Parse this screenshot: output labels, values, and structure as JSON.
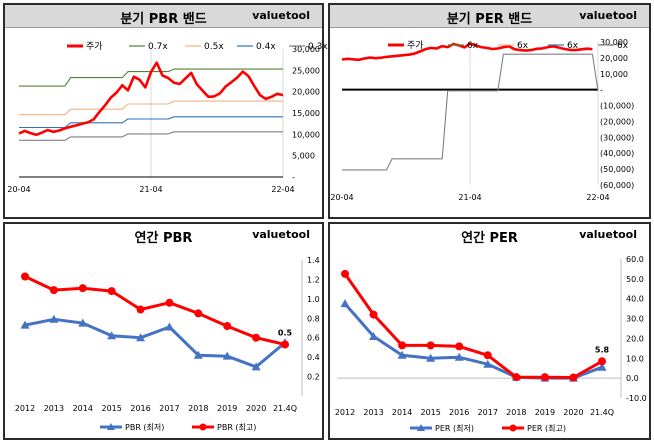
{
  "panels": {
    "qpbr": {
      "title": "분기 PBR 밴드",
      "brand": "valuetool"
    },
    "qper": {
      "title": "분기 PER 밴드",
      "brand": "valuetool"
    },
    "apbr": {
      "title": "연간 PBR",
      "brand": "valuetool"
    },
    "aper": {
      "title": "연간 PER",
      "brand": "valuetool"
    }
  },
  "chart_data": [
    {
      "id": "quarter-pbr-band",
      "type": "line",
      "title": "분기 PBR 밴드",
      "x_tick_labels": [
        "20-04",
        "21-04",
        "22-04"
      ],
      "y_tick_labels": [
        "-",
        "5,000",
        "10,000",
        "15,000",
        "20,000",
        "25,000",
        "30,000"
      ],
      "ylim": [
        0,
        30000
      ],
      "grid": "vertical",
      "legend": "top",
      "series": [
        {
          "name": "주가",
          "color": "#ff0000",
          "values": [
            10200,
            10800,
            10300,
            9900,
            10400,
            11000,
            10600,
            10900,
            11400,
            11800,
            12100,
            12500,
            12800,
            13500,
            15200,
            16800,
            18600,
            19800,
            21500,
            20300,
            23500,
            22800,
            21000,
            24600,
            26800,
            23800,
            23200,
            22100,
            21800,
            23100,
            24400,
            21700,
            20200,
            18800,
            18900,
            19600,
            21200,
            22200,
            23300,
            24700,
            23600,
            21300,
            19200,
            18300,
            18800,
            19500,
            19200
          ]
        },
        {
          "name": "0.7x",
          "color": "#548235",
          "values": [
            21300,
            21300,
            21300,
            21300,
            21300,
            21300,
            21300,
            21300,
            21300,
            23300,
            23300,
            23300,
            23300,
            23300,
            23300,
            23300,
            23300,
            23300,
            23300,
            24700,
            24700,
            24700,
            24700,
            24700,
            24700,
            24700,
            24700,
            25300,
            25300,
            25300,
            25300,
            25300,
            25300,
            25300,
            25300,
            25300,
            25300,
            25300,
            25300,
            25300,
            25300,
            25300,
            25300,
            25300,
            25300,
            25300,
            25300
          ]
        },
        {
          "name": "0.5x",
          "color": "#f4b183",
          "values": [
            14600,
            14600,
            14600,
            14600,
            14600,
            14600,
            14600,
            14600,
            14600,
            15900,
            15900,
            15900,
            15900,
            15900,
            15900,
            15900,
            15900,
            15900,
            15900,
            17100,
            17100,
            17100,
            17100,
            17100,
            17100,
            17100,
            17100,
            17800,
            17800,
            17800,
            17800,
            17800,
            17800,
            17800,
            17800,
            17800,
            17800,
            17800,
            17800,
            17800,
            17800,
            17800,
            17800,
            17800,
            17800,
            17800,
            17800
          ]
        },
        {
          "name": "0.4x",
          "color": "#2e75b6",
          "values": [
            11600,
            11600,
            11600,
            11600,
            11600,
            11600,
            11600,
            11600,
            11600,
            12700,
            12700,
            12700,
            12700,
            12700,
            12700,
            12700,
            12700,
            12700,
            12700,
            13600,
            13600,
            13600,
            13600,
            13600,
            13600,
            13600,
            13600,
            14100,
            14100,
            14100,
            14100,
            14100,
            14100,
            14100,
            14100,
            14100,
            14100,
            14100,
            14100,
            14100,
            14100,
            14100,
            14100,
            14100,
            14100,
            14100,
            14100
          ]
        },
        {
          "name": "0.3x",
          "color": "#808080",
          "values": [
            8600,
            8600,
            8600,
            8600,
            8600,
            8600,
            8600,
            8600,
            8600,
            9400,
            9400,
            9400,
            9400,
            9400,
            9400,
            9400,
            9400,
            9400,
            9400,
            10100,
            10100,
            10100,
            10100,
            10100,
            10100,
            10100,
            10100,
            10600,
            10600,
            10600,
            10600,
            10600,
            10600,
            10600,
            10600,
            10600,
            10600,
            10600,
            10600,
            10600,
            10600,
            10600,
            10600,
            10600,
            10600,
            10600,
            10600
          ]
        }
      ]
    },
    {
      "id": "quarter-per-band",
      "type": "line",
      "title": "분기 PER 밴드",
      "x_tick_labels": [
        "20-04",
        "21-04",
        "22-04"
      ],
      "y_tick_labels": [
        "30,000",
        "20,000",
        "10,000",
        "-",
        "(10,000)",
        "(20,000)",
        "(30,000)",
        "(40,000)",
        "(50,000)",
        "(60,000)"
      ],
      "ylim": [
        -60000,
        30000
      ],
      "grid": "vertical",
      "legend": "top",
      "series": [
        {
          "name": "주가",
          "color": "#ff0000",
          "values": [
            19000,
            19400,
            19100,
            18800,
            19600,
            20200,
            19800,
            20100,
            20600,
            21000,
            21300,
            21700,
            22000,
            22700,
            24000,
            25500,
            26300,
            25900,
            27400,
            26800,
            28700,
            27900,
            26600,
            28900,
            27900,
            26800,
            26300,
            25600,
            25900,
            26700,
            27300,
            25500,
            24900,
            24600,
            24900,
            25700,
            26000,
            26800,
            27300,
            26500,
            25600,
            25000,
            24900,
            25400,
            25800,
            25500
          ]
        },
        {
          "name": "6x",
          "color": "#548235",
          "values": []
        },
        {
          "name": "6x",
          "color": "#f4b183",
          "values": []
        },
        {
          "name": "6x",
          "color": "#2e75b6",
          "values": []
        },
        {
          "name": "6x",
          "color": "#808080",
          "values": [
            -50500,
            -50500,
            -50500,
            -50500,
            -50500,
            -50500,
            -50500,
            -50500,
            -50500,
            -43500,
            -43500,
            -43500,
            -43500,
            -43500,
            -43500,
            -43500,
            -43500,
            -43500,
            -43500,
            -700,
            -700,
            -700,
            -700,
            -700,
            -700,
            -700,
            -700,
            -700,
            -700,
            22300,
            22300,
            22300,
            22300,
            22300,
            22300,
            22300,
            22300,
            22300,
            22300,
            22300,
            22300,
            22300,
            22300,
            22300,
            22300,
            22300,
            -700
          ]
        }
      ]
    },
    {
      "id": "annual-pbr",
      "type": "line",
      "title": "연간 PBR",
      "categories": [
        "2012",
        "2013",
        "2014",
        "2015",
        "2016",
        "2017",
        "2018",
        "2019",
        "2020",
        "21.4Q"
      ],
      "ylim": [
        0,
        1.4
      ],
      "y_tick_labels": [
        "0.2",
        "0.4",
        "0.6",
        "0.8",
        "1.0",
        "1.2",
        "1.4"
      ],
      "legend": "bottom",
      "annotation": "0.5",
      "series": [
        {
          "name": "PBR (최저)",
          "color": "#4472c4",
          "values": [
            0.73,
            0.79,
            0.75,
            0.62,
            0.6,
            0.71,
            0.42,
            0.41,
            0.3,
            0.55
          ]
        },
        {
          "name": "PBR (최고)",
          "color": "#ff0000",
          "values": [
            1.23,
            1.09,
            1.11,
            1.08,
            0.89,
            0.96,
            0.85,
            0.72,
            0.6,
            0.53
          ]
        }
      ]
    },
    {
      "id": "annual-per",
      "type": "line",
      "title": "연간 PER",
      "categories": [
        "2012",
        "2013",
        "2014",
        "2015",
        "2016",
        "2017",
        "2018",
        "2019",
        "2020",
        "21.4Q"
      ],
      "ylim": [
        -10,
        60
      ],
      "y_tick_labels": [
        "-10.0",
        "0.0",
        "10.0",
        "20.0",
        "30.0",
        "40.0",
        "50.0",
        "60.0"
      ],
      "legend": "bottom",
      "annotation": "5.8",
      "series": [
        {
          "name": "PER (최저)",
          "color": "#4472c4",
          "values": [
            37.5,
            21.0,
            11.5,
            10.0,
            10.5,
            7.0,
            0.5,
            0.0,
            0.0,
            5.5
          ]
        },
        {
          "name": "PER (최고)",
          "color": "#ff0000",
          "values": [
            52.5,
            32.0,
            16.5,
            16.5,
            16.0,
            11.5,
            0.5,
            0.5,
            0.3,
            8.5
          ]
        }
      ]
    }
  ]
}
